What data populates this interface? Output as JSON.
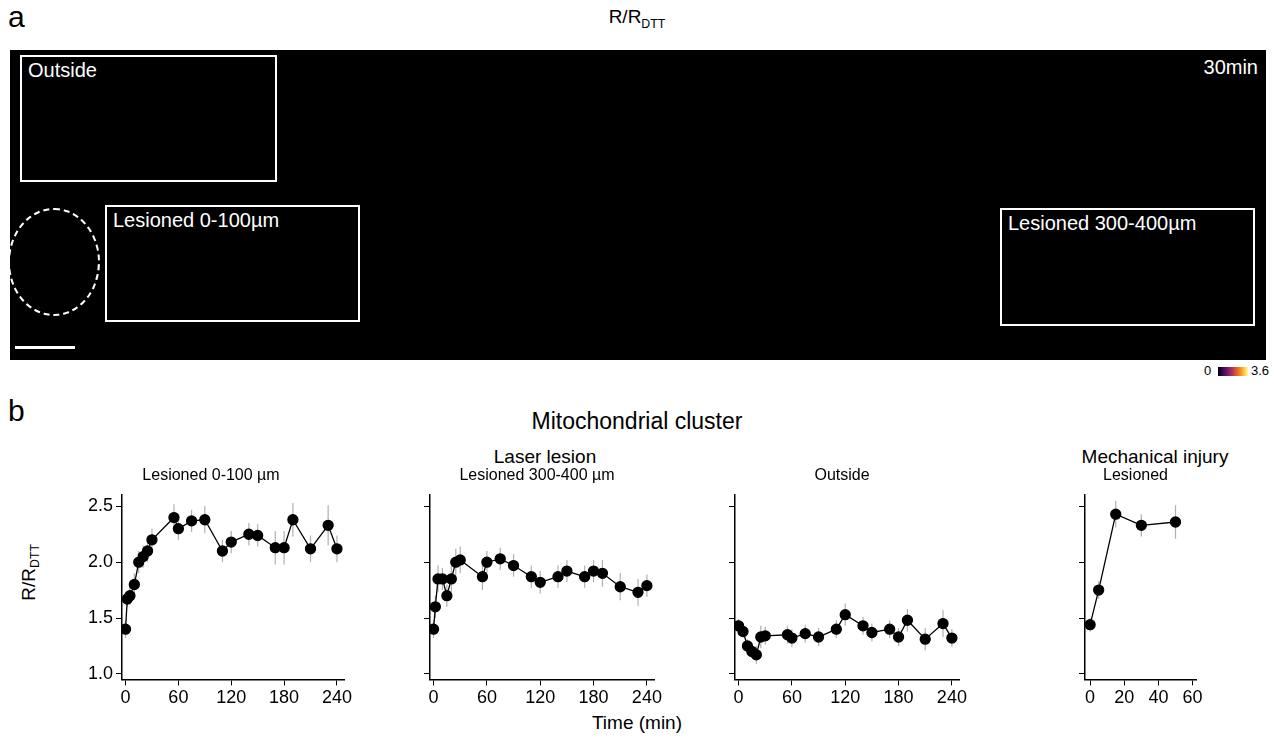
{
  "panel_a": {
    "letter": "a",
    "title": {
      "text": "R/R",
      "subscript": "DTT"
    },
    "time_label": "30min",
    "regions": [
      "Outside",
      "Lesioned 0-100µm",
      "Lesioned 300-400µm"
    ],
    "colorbar": {
      "range": [
        0,
        3.6
      ],
      "ticks": [
        0,
        3.6
      ]
    }
  },
  "panel_b": {
    "letter": "b",
    "title": "Mitochondrial cluster",
    "groups": [
      "Laser lesion",
      "Mechanical injury"
    ],
    "y_label": {
      "text": "R/R",
      "subscript": "DTT"
    },
    "x_label": "Time (min)"
  },
  "chart_data": [
    {
      "type": "line",
      "title": "Lesioned 0-100 µm",
      "color": "#000000",
      "marker": "circle",
      "grid": false,
      "x": [
        0,
        2,
        5,
        10,
        15,
        20,
        25,
        30,
        55,
        60,
        75,
        90,
        110,
        120,
        140,
        150,
        170,
        180,
        190,
        210,
        230,
        240
      ],
      "values": [
        1.4,
        1.67,
        1.7,
        1.8,
        2.0,
        2.05,
        2.1,
        2.2,
        2.4,
        2.3,
        2.37,
        2.38,
        2.1,
        2.18,
        2.25,
        2.24,
        2.13,
        2.13,
        2.38,
        2.12,
        2.33,
        2.12
      ],
      "errors": [
        0.08,
        0.07,
        0.08,
        0.1,
        0.1,
        0.1,
        0.1,
        0.1,
        0.12,
        0.1,
        0.1,
        0.12,
        0.1,
        0.1,
        0.1,
        0.1,
        0.15,
        0.15,
        0.15,
        0.12,
        0.18,
        0.12
      ],
      "xlim": [
        -4,
        248
      ],
      "xticks": [
        0,
        60,
        120,
        180,
        240
      ],
      "ylim": [
        0.95,
        2.6
      ],
      "yticks": [
        {
          "value": 1,
          "label": "1.0"
        },
        1.5,
        {
          "value": 2,
          "label": "2.0"
        },
        2.5
      ]
    },
    {
      "type": "line",
      "title": "Lesioned 300-400 µm",
      "color": "#000000",
      "marker": "circle",
      "grid": false,
      "tick_labels": "x",
      "x": [
        0,
        2,
        5,
        10,
        15,
        20,
        25,
        30,
        55,
        60,
        75,
        90,
        110,
        120,
        140,
        150,
        170,
        180,
        190,
        210,
        230,
        240
      ],
      "values": [
        1.4,
        1.6,
        1.85,
        1.85,
        1.7,
        1.85,
        2.0,
        2.02,
        1.87,
        2.0,
        2.03,
        1.97,
        1.87,
        1.82,
        1.87,
        1.92,
        1.87,
        1.92,
        1.9,
        1.78,
        1.73,
        1.79
      ],
      "errors": [
        0.08,
        0.1,
        0.12,
        0.1,
        0.1,
        0.12,
        0.12,
        0.12,
        0.12,
        0.1,
        0.1,
        0.1,
        0.1,
        0.1,
        0.1,
        0.1,
        0.1,
        0.1,
        0.12,
        0.12,
        0.12,
        0.1
      ],
      "xlim": [
        -4,
        248
      ],
      "xticks": [
        0,
        60,
        120,
        180,
        240
      ],
      "ylim": [
        0.95,
        2.6
      ],
      "yticks": [
        {
          "value": 1,
          "label": "1.0"
        },
        1.5,
        {
          "value": 2,
          "label": "2.0"
        },
        2.5
      ]
    },
    {
      "type": "line",
      "title": "Outside",
      "color": "#000000",
      "marker": "circle",
      "grid": false,
      "tick_labels": "x",
      "x": [
        0,
        5,
        10,
        15,
        20,
        25,
        30,
        55,
        60,
        75,
        90,
        110,
        120,
        140,
        150,
        170,
        180,
        190,
        210,
        230,
        240
      ],
      "values": [
        1.43,
        1.38,
        1.25,
        1.2,
        1.17,
        1.33,
        1.34,
        1.35,
        1.32,
        1.36,
        1.33,
        1.4,
        1.53,
        1.43,
        1.37,
        1.4,
        1.33,
        1.48,
        1.31,
        1.45,
        1.32
      ],
      "errors": [
        0.06,
        0.06,
        0.06,
        0.06,
        0.08,
        0.1,
        0.08,
        0.08,
        0.08,
        0.08,
        0.08,
        0.08,
        0.1,
        0.08,
        0.08,
        0.08,
        0.08,
        0.1,
        0.1,
        0.12,
        0.08
      ],
      "xlim": [
        -4,
        248
      ],
      "xticks": [
        0,
        60,
        120,
        180,
        240
      ],
      "ylim": [
        0.95,
        2.6
      ],
      "yticks": [
        {
          "value": 1,
          "label": "1.0"
        },
        1.5,
        {
          "value": 2,
          "label": "2.0"
        },
        2.5
      ]
    },
    {
      "type": "line",
      "title": "Lesioned",
      "color": "#000000",
      "marker": "circle",
      "grid": false,
      "tick_labels": "x",
      "x": [
        0,
        5,
        15,
        30,
        50
      ],
      "values": [
        1.44,
        1.75,
        2.43,
        2.33,
        2.36
      ],
      "errors": [
        0.06,
        0.08,
        0.12,
        0.1,
        0.15
      ],
      "xlim": [
        -3,
        62
      ],
      "xticks": [
        0,
        20,
        40,
        60
      ],
      "ylim": [
        0.95,
        2.6
      ],
      "yticks": [
        {
          "value": 1,
          "label": "1.0"
        },
        1.5,
        {
          "value": 2,
          "label": "2.0"
        },
        2.5
      ]
    }
  ]
}
